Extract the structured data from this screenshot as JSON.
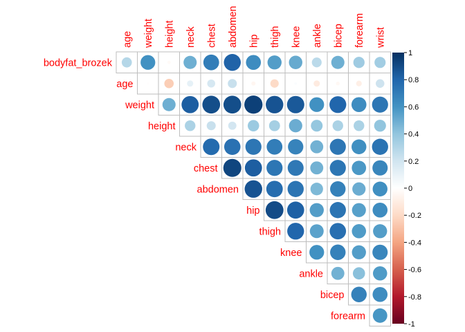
{
  "chart_data": {
    "type": "heatmap",
    "subtype": "corrplot-upper-circles",
    "title": "",
    "row_labels": [
      "bodyfat_brozek",
      "age",
      "weight",
      "height",
      "neck",
      "chest",
      "abdomen",
      "hip",
      "thigh",
      "knee",
      "ankle",
      "bicep",
      "forearm"
    ],
    "col_labels": [
      "age",
      "weight",
      "height",
      "neck",
      "chest",
      "abdomen",
      "hip",
      "thigh",
      "knee",
      "ankle",
      "bicep",
      "forearm",
      "wrist"
    ],
    "matrix": [
      [
        0.29,
        0.61,
        -0.03,
        0.49,
        0.7,
        0.81,
        0.63,
        0.56,
        0.51,
        0.27,
        0.49,
        0.36,
        0.35
      ],
      [
        null,
        -0.01,
        -0.25,
        0.11,
        0.18,
        0.23,
        -0.05,
        -0.2,
        0.02,
        -0.11,
        -0.04,
        -0.09,
        0.21
      ],
      [
        null,
        null,
        0.49,
        0.83,
        0.89,
        0.89,
        0.94,
        0.87,
        0.85,
        0.61,
        0.8,
        0.63,
        0.73
      ],
      [
        null,
        null,
        null,
        0.32,
        0.23,
        0.19,
        0.37,
        0.34,
        0.5,
        0.39,
        0.32,
        0.32,
        0.4
      ],
      [
        null,
        null,
        null,
        null,
        0.78,
        0.75,
        0.73,
        0.7,
        0.67,
        0.48,
        0.73,
        0.62,
        0.74
      ],
      [
        null,
        null,
        null,
        null,
        null,
        0.92,
        0.83,
        0.73,
        0.72,
        0.48,
        0.73,
        0.58,
        0.66
      ],
      [
        null,
        null,
        null,
        null,
        null,
        null,
        0.87,
        0.77,
        0.74,
        0.45,
        0.68,
        0.5,
        0.62
      ],
      [
        null,
        null,
        null,
        null,
        null,
        null,
        null,
        0.9,
        0.82,
        0.56,
        0.74,
        0.55,
        0.63
      ],
      [
        null,
        null,
        null,
        null,
        null,
        null,
        null,
        null,
        0.8,
        0.54,
        0.76,
        0.57,
        0.56
      ],
      [
        null,
        null,
        null,
        null,
        null,
        null,
        null,
        null,
        null,
        0.61,
        0.68,
        0.56,
        0.66
      ],
      [
        null,
        null,
        null,
        null,
        null,
        null,
        null,
        null,
        null,
        null,
        0.48,
        0.42,
        0.57
      ],
      [
        null,
        null,
        null,
        null,
        null,
        null,
        null,
        null,
        null,
        null,
        null,
        0.68,
        0.63
      ],
      [
        null,
        null,
        null,
        null,
        null,
        null,
        null,
        null,
        null,
        null,
        null,
        null,
        0.59
      ]
    ],
    "colorbar": {
      "range": [
        -1,
        1
      ],
      "ticks": [
        "1",
        "0.8",
        "0.6",
        "0.4",
        "0.2",
        "0",
        "-0.2",
        "-0.4",
        "-0.6",
        "-0.8",
        "-1"
      ],
      "tick_values": [
        1,
        0.8,
        0.6,
        0.4,
        0.2,
        0,
        -0.2,
        -0.4,
        -0.6,
        -0.8,
        -1
      ]
    },
    "colors": {
      "negative_end": "#67001F",
      "neg_mid1": "#B2182B",
      "neg_mid2": "#D6604D",
      "neg_mid3": "#F4A582",
      "neg_mid4": "#FDDBC7",
      "zero": "#FFFFFF",
      "pos_mid4": "#D1E5F0",
      "pos_mid3": "#92C5DE",
      "pos_mid2": "#4393C3",
      "pos_mid1": "#2166AC",
      "positive_end": "#053061",
      "label_color": "#FF0000",
      "grid_color": "#BEBEBE"
    }
  }
}
